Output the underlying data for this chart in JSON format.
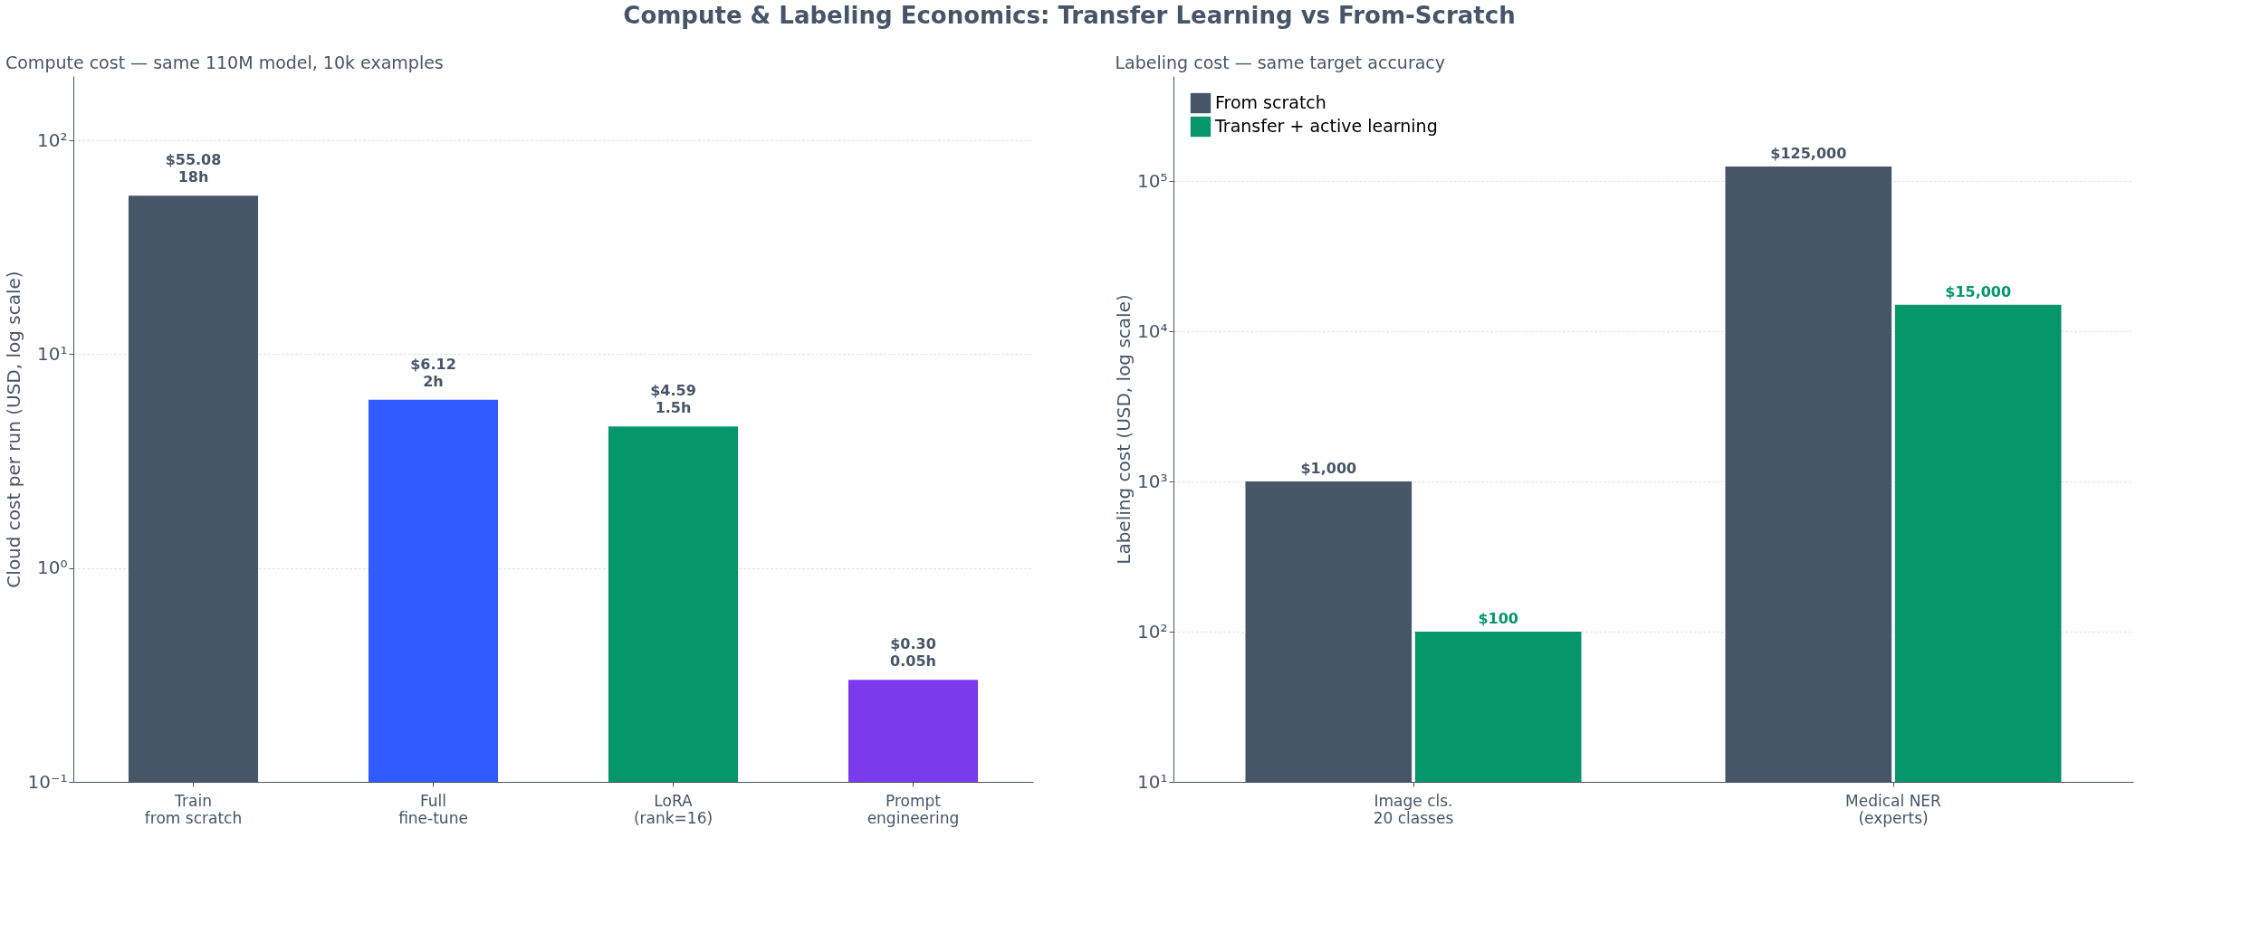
{
  "chart_data": [
    {
      "type": "bar",
      "title": "Compute & Labeling Economics: Transfer Learning vs From-Scratch",
      "subtitle": "Compute cost — same 110M model, 10k examples",
      "ylabel": "Cloud cost per run (USD, log scale)",
      "categories": [
        "Train\nfrom scratch",
        "Full\nfine-tune",
        "LoRA\n(rank=16)",
        "Prompt\nengineering"
      ],
      "values": [
        55.08,
        6.12,
        4.59,
        0.3
      ],
      "colors": [
        "#475569",
        "#2f5bff",
        "#059669",
        "#7c3aed"
      ],
      "value_labels": [
        "$55.08\n18h",
        "$6.12\n2h",
        "$4.59\n1.5h",
        "$0.30\n0.05h"
      ],
      "log": true,
      "ylim": [
        0.1,
        200
      ],
      "yticks": [
        {
          "value": 0.1,
          "label": "10⁻¹"
        },
        {
          "value": 1,
          "label": "10⁰"
        },
        {
          "value": 10,
          "label": "10¹"
        },
        {
          "value": 100,
          "label": "10²"
        }
      ],
      "grid": "y"
    },
    {
      "type": "bar",
      "subtitle": "Labeling cost — same target accuracy",
      "ylabel": "Labeling cost (USD, log scale)",
      "categories": [
        "Image cls.\n20 classes",
        "Medical NER\n(experts)"
      ],
      "series": [
        {
          "name": "From scratch",
          "color": "#475569",
          "values": [
            1000,
            125000
          ],
          "value_labels": [
            "$1,000",
            "$125,000"
          ]
        },
        {
          "name": "Transfer + active learning",
          "color": "#059669",
          "values": [
            100,
            15000
          ],
          "value_labels": [
            "$100",
            "$15,000"
          ]
        }
      ],
      "log": true,
      "ylim": [
        10,
        500000
      ],
      "yticks": [
        {
          "value": 10,
          "label": "10¹"
        },
        {
          "value": 100,
          "label": "10²"
        },
        {
          "value": 1000,
          "label": "10³"
        },
        {
          "value": 10000,
          "label": "10⁴"
        },
        {
          "value": 100000,
          "label": "10⁵"
        }
      ],
      "grid": "y",
      "legend": "top left"
    }
  ]
}
